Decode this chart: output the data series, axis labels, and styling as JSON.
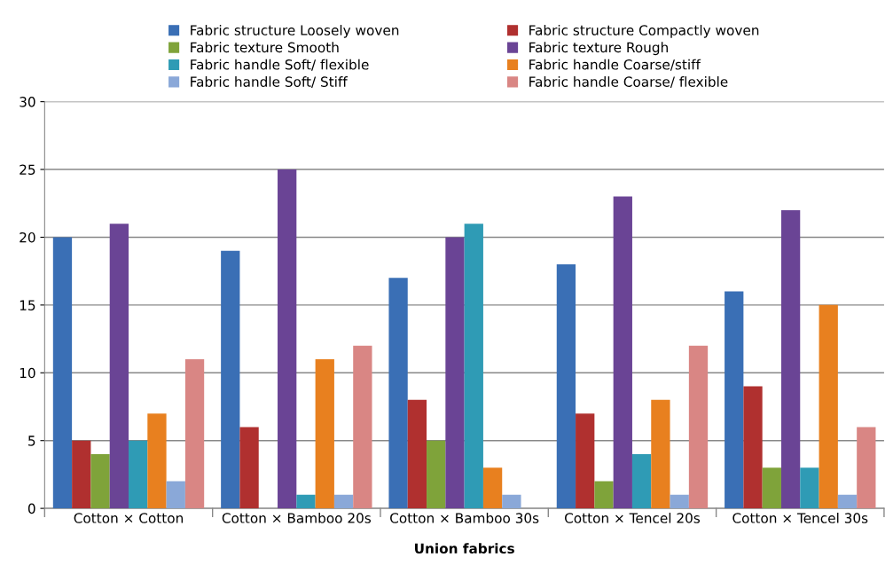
{
  "chart_data": {
    "type": "bar",
    "xlabel": "Union fabrics",
    "categories": [
      "Cotton × Cotton",
      "Cotton × Bamboo 20s",
      "Cotton × Bamboo 30s",
      "Cotton × Tencel 20s",
      "Cotton × Tencel 30s"
    ],
    "series": [
      {
        "name": "Fabric structure Loosely woven",
        "color": "#3a6fb5",
        "values": [
          20,
          19,
          17,
          18,
          16
        ]
      },
      {
        "name": "Fabric structure Compactly woven",
        "color": "#b0302f",
        "values": [
          5,
          6,
          8,
          7,
          9
        ]
      },
      {
        "name": "Fabric texture Smooth",
        "color": "#7fa33a",
        "values": [
          4,
          0,
          5,
          2,
          3
        ]
      },
      {
        "name": "Fabric texture Rough",
        "color": "#6a4495",
        "values": [
          21,
          25,
          20,
          23,
          22
        ]
      },
      {
        "name": "Fabric handle Soft/ flexible",
        "color": "#2f9bb5",
        "values": [
          5,
          1,
          21,
          4,
          3
        ]
      },
      {
        "name": "Fabric handle Coarse/stiff",
        "color": "#e8801f",
        "values": [
          7,
          11,
          3,
          8,
          15
        ]
      },
      {
        "name": "Fabric handle Soft/ Stiff",
        "color": "#8aa8d8",
        "values": [
          2,
          1,
          1,
          1,
          1
        ]
      },
      {
        "name": "Fabric handle Coarse/ flexible",
        "color": "#d98684",
        "values": [
          11,
          12,
          0,
          12,
          6
        ]
      }
    ],
    "ylim": [
      0,
      30
    ],
    "yticks": [
      0,
      5,
      10,
      15,
      20,
      25,
      30
    ],
    "grid": "y",
    "legend": "top"
  }
}
